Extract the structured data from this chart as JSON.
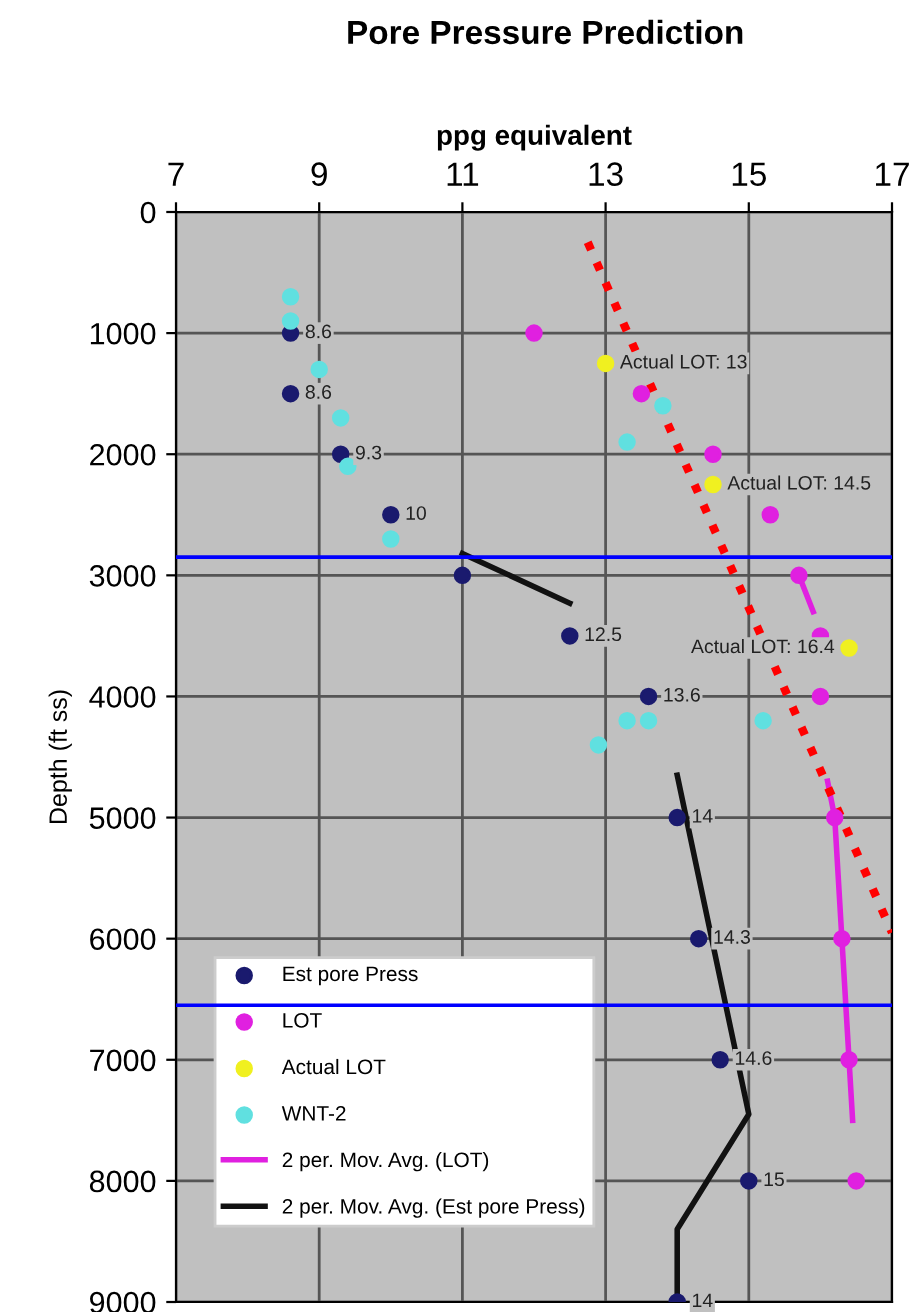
{
  "chart_data": {
    "type": "scatter",
    "title": "Pore Pressure Prediction",
    "xlabel": "ppg equivalent",
    "ylabel": "Depth (ft ss)",
    "xlim": [
      7,
      17
    ],
    "xticks": [
      7,
      9,
      11,
      13,
      15,
      17
    ],
    "ylim": [
      9000,
      0
    ],
    "yticks": [
      0,
      1000,
      2000,
      3000,
      4000,
      5000,
      6000,
      7000,
      8000,
      9000
    ],
    "grid": true,
    "legend": "bottom left",
    "marker": "circle",
    "series": [
      {
        "name": "Est pore Press",
        "color": "#1a1a6e",
        "x": [
          8.6,
          8.6,
          9.3,
          10,
          11,
          12.5,
          13.6,
          14,
          14.3,
          14.6,
          15,
          14
        ],
        "values": [
          1000,
          1500,
          2000,
          2500,
          3000,
          3500,
          4000,
          5000,
          6000,
          7000,
          8000,
          9000
        ]
      },
      {
        "name": "LOT",
        "color": "#e020e0",
        "x": [
          12,
          13.5,
          14.5,
          15.3,
          15.7,
          16,
          16,
          16.2,
          16.3,
          16.4,
          16.5
        ],
        "values": [
          1000,
          1500,
          2000,
          2500,
          3000,
          3500,
          4000,
          5000,
          6000,
          7000,
          8000
        ]
      },
      {
        "name": "Actual LOT",
        "color": "#f0f020",
        "x": [
          13,
          14.5,
          16.4
        ],
        "values": [
          1250,
          2250,
          3600
        ]
      },
      {
        "name": "WNT-2",
        "color": "#60e0e0",
        "x": [
          8.6,
          8.6,
          9,
          9.3,
          9.4,
          10,
          13.3,
          13.8,
          12.9,
          13.3,
          13.6,
          15.2
        ],
        "values": [
          700,
          900,
          1300,
          1700,
          2100,
          2700,
          1900,
          1600,
          4400,
          4200,
          4200,
          4200
        ]
      },
      {
        "name": "2 per. Mov. Avg. (LOT)",
        "type": "line",
        "color": "#e020e0",
        "marker": "none",
        "x": [
          15.7,
          15.9,
          null,
          16.1,
          16.2,
          16.3,
          16.4,
          16.45
        ],
        "values": [
          3000,
          3300,
          null,
          4700,
          5000,
          6000,
          7000,
          7500
        ]
      },
      {
        "name": "2 per. Mov. Avg. (Est pore Press)",
        "type": "line",
        "color": "#111111",
        "marker": "none",
        "x": [
          11,
          12.5,
          null,
          14,
          15,
          14,
          14
        ],
        "values": [
          2820,
          3230,
          null,
          4650,
          7450,
          8400,
          9000
        ]
      },
      {
        "type": "line",
        "color": "#ff0000",
        "marker": "none",
        "line_style": "dotted",
        "x": [
          12.75,
          17
        ],
        "values": [
          250,
          5950
        ]
      }
    ],
    "annotations": [
      {
        "text": "8.6",
        "x": 8.6,
        "y": 1000
      },
      {
        "text": "8.6",
        "x": 8.6,
        "y": 1500
      },
      {
        "text": "9.3",
        "x": 9.3,
        "y": 2000
      },
      {
        "text": "10",
        "x": 10,
        "y": 2500
      },
      {
        "text": "12.5",
        "x": 12.5,
        "y": 3500
      },
      {
        "text": "13.6",
        "x": 13.6,
        "y": 4000
      },
      {
        "text": "14",
        "x": 14,
        "y": 5000
      },
      {
        "text": "14.3",
        "x": 14.3,
        "y": 6000
      },
      {
        "text": "14.6",
        "x": 14.6,
        "y": 7000
      },
      {
        "text": "15",
        "x": 15,
        "y": 8000
      },
      {
        "text": "14",
        "x": 14,
        "y": 9000
      },
      {
        "text": "Actual LOT: 13",
        "x": 13,
        "y": 1250
      },
      {
        "text": "Actual LOT: 14.5",
        "x": 14.5,
        "y": 2250
      },
      {
        "text": "Actual LOT: 16.4",
        "x": 16.4,
        "y": 3600
      }
    ],
    "ref_lines": [
      {
        "axis": "y",
        "value": 2850,
        "color": "#0000ff"
      },
      {
        "axis": "y",
        "value": 6550,
        "color": "#0000ff"
      }
    ]
  }
}
